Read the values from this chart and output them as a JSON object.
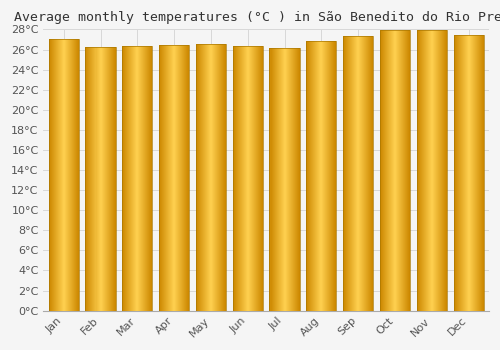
{
  "title": "Average monthly temperatures (°C ) in São Benedito do Rio Preto",
  "months": [
    "Jan",
    "Feb",
    "Mar",
    "Apr",
    "May",
    "Jun",
    "Jul",
    "Aug",
    "Sep",
    "Oct",
    "Nov",
    "Dec"
  ],
  "values": [
    27.0,
    26.3,
    26.4,
    26.5,
    26.6,
    26.4,
    26.2,
    26.8,
    27.3,
    27.9,
    27.9,
    27.4
  ],
  "ylim": [
    0,
    28
  ],
  "yticks": [
    0,
    2,
    4,
    6,
    8,
    10,
    12,
    14,
    16,
    18,
    20,
    22,
    24,
    26,
    28
  ],
  "bar_color_edge": "#CC8800",
  "bar_color_center": "#FFD050",
  "bar_color_main": "#F5A800",
  "grid_color": "#d8d8d8",
  "background_color": "#f5f5f5",
  "title_fontsize": 9.5,
  "tick_fontsize": 8
}
